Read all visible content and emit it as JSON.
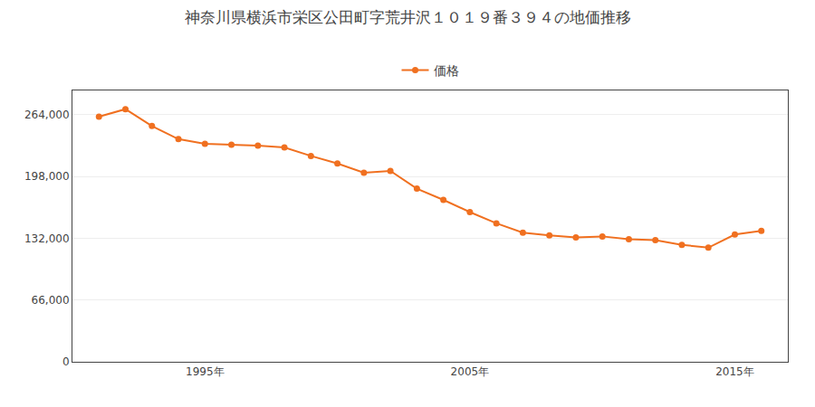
{
  "chart_data": {
    "type": "line",
    "title": "神奈川県横浜市栄区公田町字荒井沢１０１９番３９４の地価推移",
    "x": [
      1991,
      1992,
      1993,
      1994,
      1995,
      1996,
      1997,
      1998,
      1999,
      2000,
      2001,
      2002,
      2003,
      2004,
      2005,
      2006,
      2007,
      2008,
      2009,
      2010,
      2011,
      2012,
      2013,
      2014,
      2015,
      2016
    ],
    "series": [
      {
        "name": "価格",
        "color": "#f07020",
        "marker": "circle",
        "line_style": "solid",
        "values": [
          262000,
          270000,
          252000,
          238000,
          233000,
          232000,
          231000,
          229000,
          220000,
          212000,
          202000,
          204000,
          185000,
          173000,
          160000,
          148000,
          138000,
          135000,
          133000,
          134000,
          131000,
          130000,
          125000,
          122000,
          136000,
          140000
        ]
      }
    ],
    "xlim": [
      1990,
      2017
    ],
    "xticks": [
      {
        "value": 1995,
        "label": "1995年"
      },
      {
        "value": 2005,
        "label": "2005年"
      },
      {
        "value": 2015,
        "label": "2015年"
      }
    ],
    "ylim": [
      0,
      290000
    ],
    "yticks": [
      0,
      {
        "value": 66000,
        "label": "66,000"
      },
      {
        "value": 132000,
        "label": "132,000"
      },
      {
        "value": 198000,
        "label": "198,000"
      },
      {
        "value": 264000,
        "label": "264,000"
      }
    ],
    "grid": "y",
    "legend": "top"
  }
}
